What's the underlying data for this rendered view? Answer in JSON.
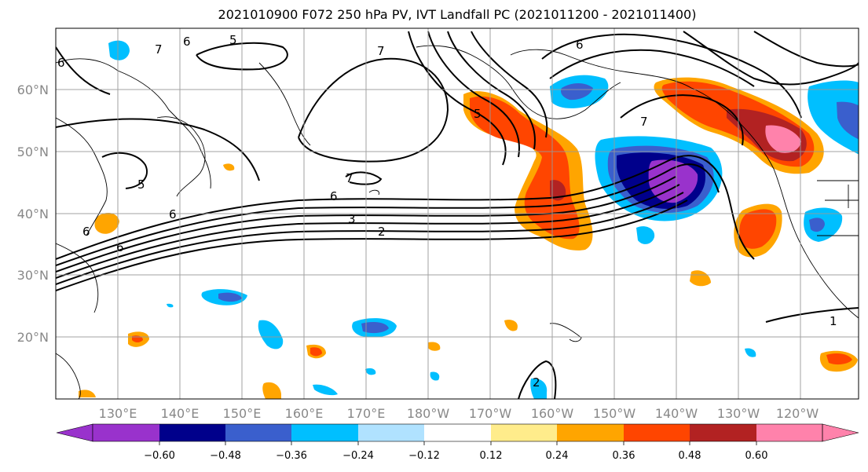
{
  "title": "2021010900 F072 250 hPa PV, IVT Landfall PC (2021011200 - 2021011400)",
  "lon_labels": [
    "130°E",
    "140°E",
    "150°E",
    "160°E",
    "170°E",
    "180°W",
    "170°W",
    "160°W",
    "150°W",
    "140°W",
    "130°W",
    "120°W"
  ],
  "lat_labels": [
    "60°N",
    "50°N",
    "40°N",
    "30°N",
    "20°N"
  ],
  "colorbar": {
    "colors": [
      "#9932cc",
      "#00008b",
      "#3a5fcd",
      "#00bfff",
      "#b0e2ff",
      "#ffffff",
      "#ffec8b",
      "#ffa500",
      "#ff4500",
      "#b22222",
      "#ff82ab"
    ],
    "tick_labels": [
      "−0.60",
      "−0.48",
      "−0.36",
      "−0.24",
      "−0.12",
      "0.12",
      "0.24",
      "0.36",
      "0.48",
      "0.60"
    ]
  },
  "contour_labels": [
    "5",
    "6",
    "7",
    "6",
    "7",
    "5",
    "7",
    "6",
    "6",
    "5",
    "6",
    "3",
    "2",
    "7",
    "6",
    "1",
    "2",
    "6"
  ]
}
